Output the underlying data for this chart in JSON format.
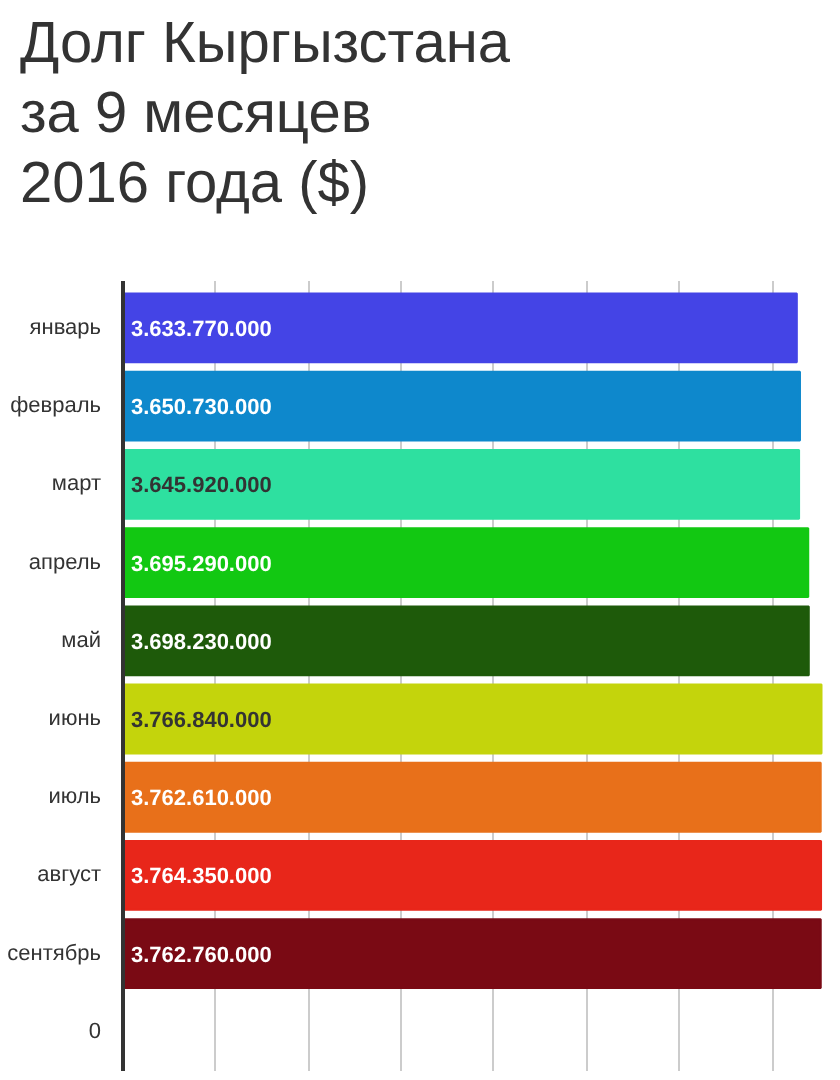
{
  "chart_data": {
    "type": "bar",
    "orientation": "horizontal",
    "title": "Долг Кыргызстана\nза 9 месяцев\n2016 года ($)",
    "categories": [
      "январь",
      "февраль",
      "март",
      "апрель",
      "май",
      "июнь",
      "июль",
      "август",
      "сентябрь",
      "0"
    ],
    "values": [
      3633770000,
      3650730000,
      3645920000,
      3695290000,
      3698230000,
      3766840000,
      3762610000,
      3764350000,
      3762760000,
      null
    ],
    "value_labels": [
      "3.633.770.000",
      "3.650.730.000",
      "3.645.920.000",
      "3.695.290.000",
      "3.698.230.000",
      "3.766.840.000",
      "3.762.610.000",
      "3.764.350.000",
      "3.762.760.000",
      null
    ],
    "colors": [
      "#4444e6",
      "#0e88cc",
      "#2ee0a0",
      "#12c812",
      "#1e5a0a",
      "#c4d40c",
      "#e8701a",
      "#e8261a",
      "#7a0a14",
      "#ffffff"
    ],
    "grid": "x",
    "tick_labels": "y"
  }
}
